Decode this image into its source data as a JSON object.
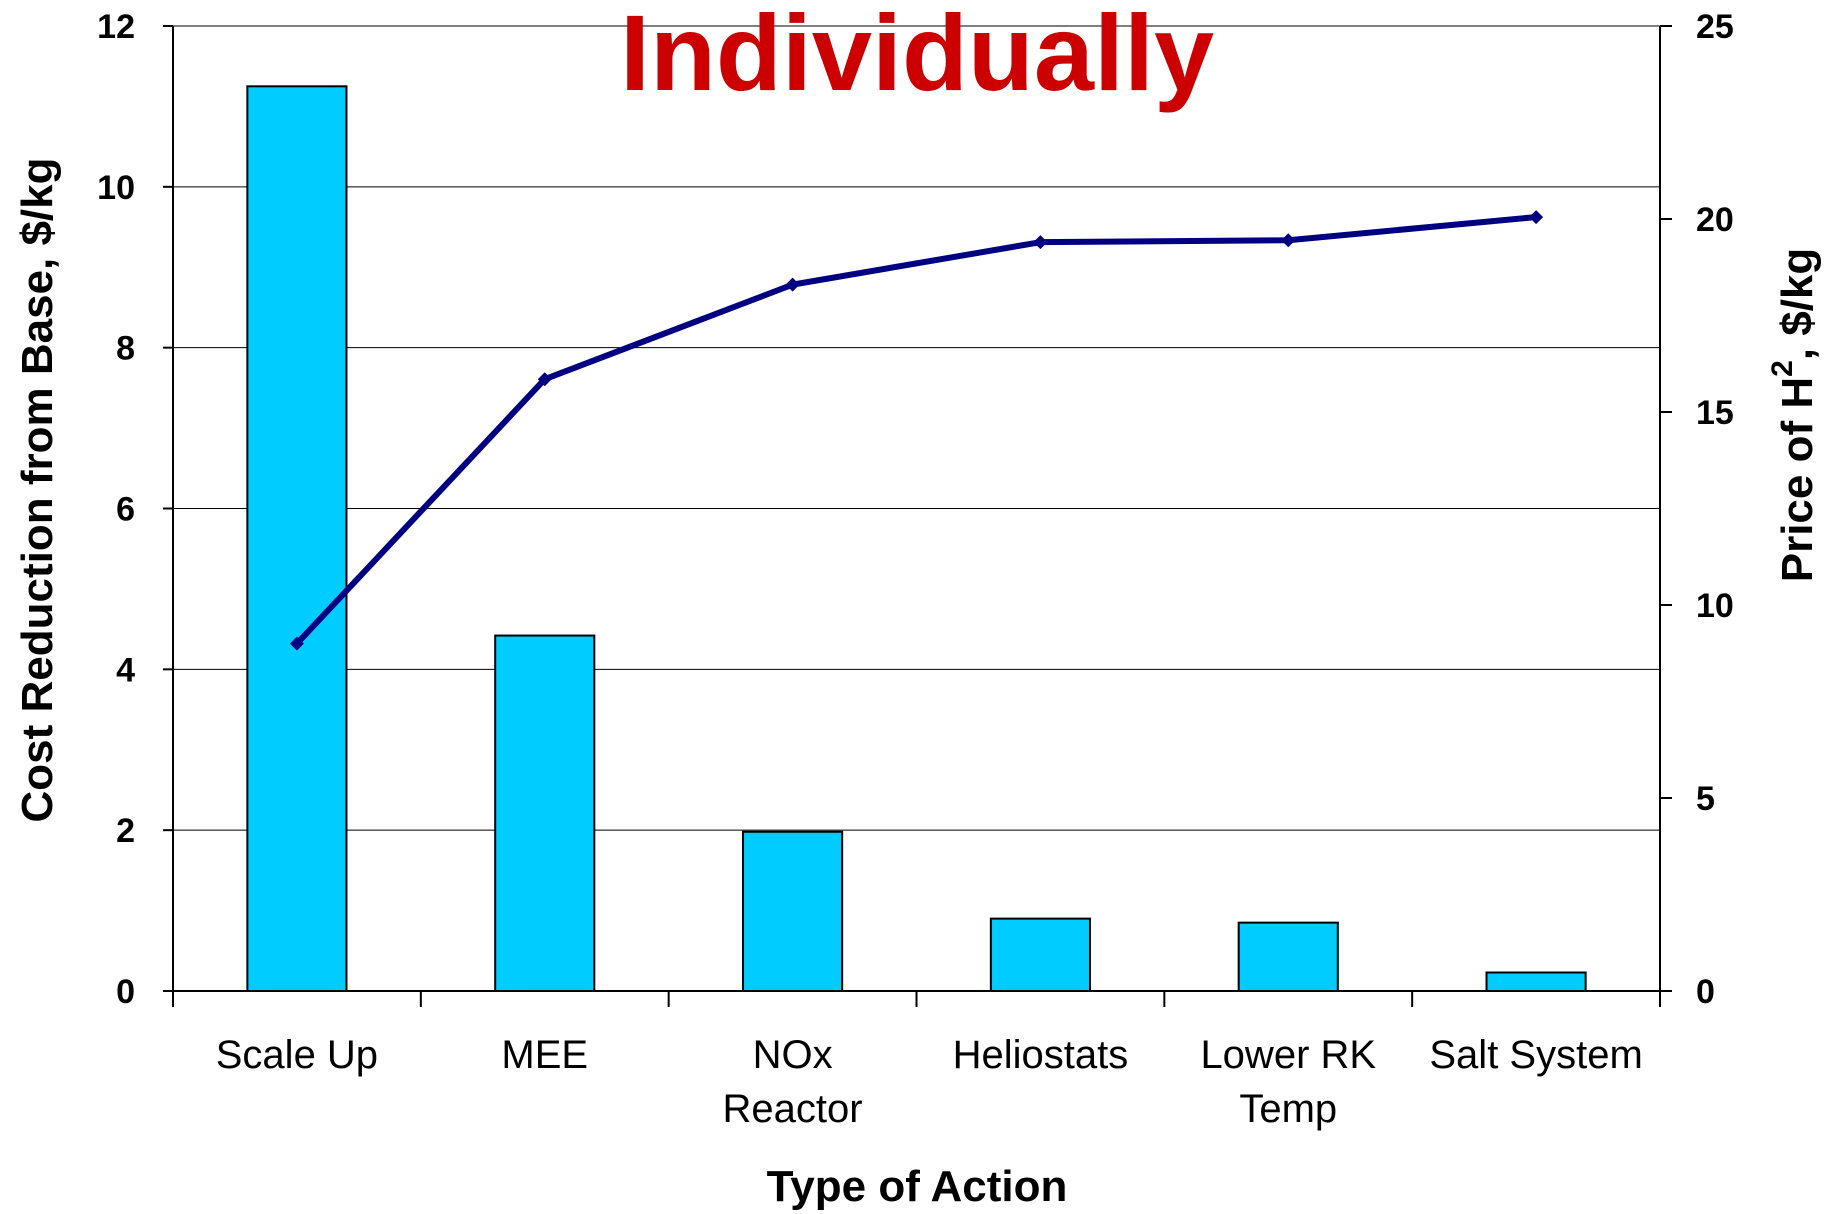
{
  "chart_data": {
    "type": "bar",
    "title": "Individually",
    "title_color": "#cc0000",
    "xlabel": "Type of Action",
    "ylabel": "Cost Reduction from Base, $/kg",
    "y2label_parts": [
      "Price of H",
      "2",
      ", $/kg"
    ],
    "categories": [
      [
        "Scale Up"
      ],
      [
        "MEE"
      ],
      [
        "NOx",
        "Reactor"
      ],
      [
        "Heliostats"
      ],
      [
        "Lower RK",
        "Temp"
      ],
      [
        "Salt System"
      ]
    ],
    "series": [
      {
        "values": [
          11.25,
          4.42,
          1.98,
          0.9,
          0.85,
          0.23
        ],
        "type": "bar",
        "axis": "left",
        "color": "#00ccff"
      },
      {
        "values": [
          9.0,
          15.85,
          18.3,
          19.4,
          19.45,
          20.05
        ],
        "type": "line",
        "axis": "right",
        "color": "#000080"
      }
    ],
    "ylim": [
      0,
      12
    ],
    "yticks": [
      "0",
      "2",
      "4",
      "6",
      "8",
      "10",
      "12"
    ],
    "y2lim": [
      0,
      25
    ],
    "y2ticks": [
      "0",
      "5",
      "10",
      "15",
      "20",
      "25"
    ],
    "grid": true
  }
}
